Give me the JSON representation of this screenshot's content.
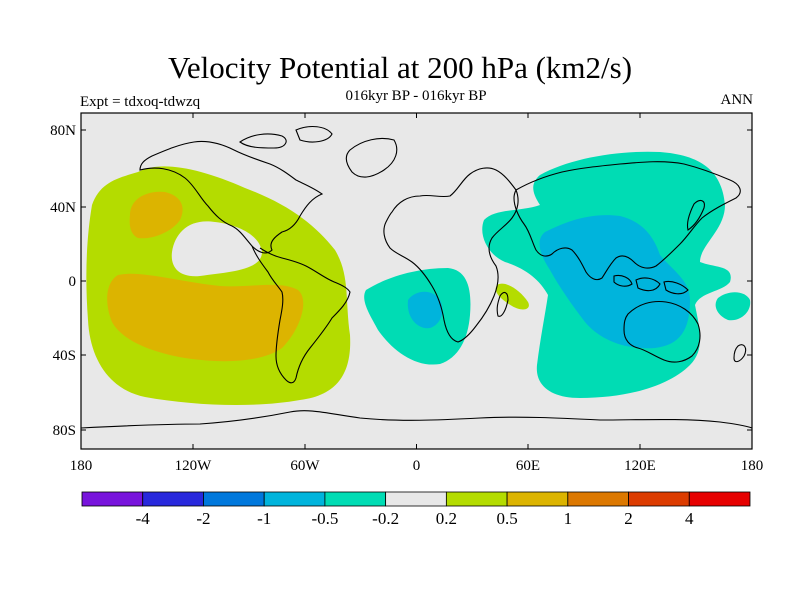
{
  "header": {
    "title": "Velocity Potential at 200 hPa (km2/s)",
    "subtitle": "016kyr BP - 016kyr BP",
    "expt": "Expt = tdxoq-tdwzq",
    "season": "ANN"
  },
  "map": {
    "lat_ticks": [
      {
        "label": "80N"
      },
      {
        "label": "40N"
      },
      {
        "label": "0"
      },
      {
        "label": "40S"
      },
      {
        "label": "80S"
      }
    ],
    "lon_ticks": [
      {
        "label": "180"
      },
      {
        "label": "120W"
      },
      {
        "label": "60W"
      },
      {
        "label": "0"
      },
      {
        "label": "60E"
      },
      {
        "label": "120E"
      },
      {
        "label": "180"
      }
    ],
    "colors": {
      "background": "#e8e8e8",
      "neg_02": "#00dcb4",
      "neg_05": "#00b4dc",
      "pos_02": "#b4dc00",
      "pos_05": "#dcb400"
    }
  },
  "colorbar": {
    "colors": [
      "#7814dc",
      "#2828dc",
      "#0078dc",
      "#00b4dc",
      "#00dcb4",
      "#e8e8e8",
      "#b4dc00",
      "#dcb400",
      "#dc7800",
      "#dc3c00",
      "#e60000"
    ],
    "labels": [
      "-4",
      "-2",
      "-1",
      "-0.5",
      "-0.2",
      "0.2",
      "0.5",
      "1",
      "2",
      "4"
    ]
  }
}
